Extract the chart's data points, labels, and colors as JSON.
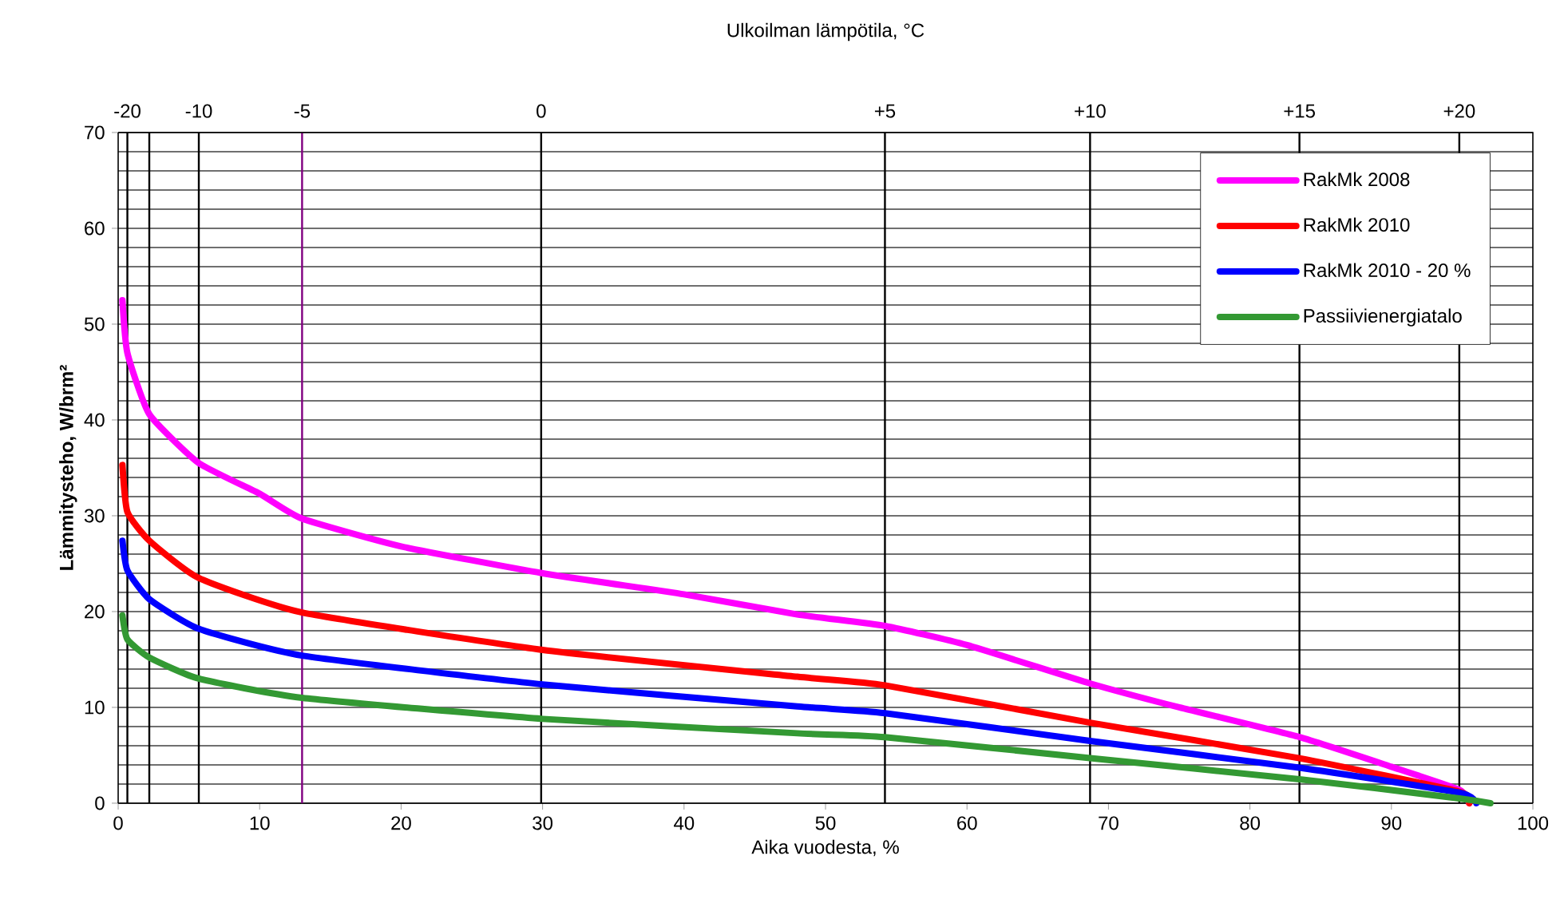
{
  "chart_data": {
    "type": "line",
    "xlabel": "Aika vuodesta, %",
    "ylabel": "Lämmitysteho, W/brm²",
    "annotations": [
      "Ulkoilman lämpötila, °C",
      {
        "text": "-20",
        "x": 0.65,
        "y": 70
      },
      {
        "text": "-10",
        "x": 5.7,
        "y": 70
      },
      {
        "text": "-5",
        "x": 13,
        "y": 70
      },
      {
        "text": "0",
        "x": 29.9,
        "y": 70
      },
      {
        "text": "+5",
        "x": 54.2,
        "y": 70
      },
      {
        "text": "+10",
        "x": 68.7,
        "y": 70
      },
      {
        "text": "+15",
        "x": 83.5,
        "y": 70
      },
      {
        "text": "+20",
        "x": 94.8,
        "y": 70
      }
    ],
    "xlim": [
      0,
      100
    ],
    "ylim": [
      0,
      70
    ],
    "xticks": [
      0,
      10,
      20,
      30,
      40,
      50,
      60,
      70,
      80,
      90,
      100
    ],
    "yticks": [
      0,
      {
        "value": 2,
        "label": null
      },
      {
        "value": 4,
        "label": null
      },
      {
        "value": 6,
        "label": null
      },
      {
        "value": 8,
        "label": null
      },
      10,
      {
        "value": 12,
        "label": null
      },
      {
        "value": 14,
        "label": null
      },
      {
        "value": 16,
        "label": null
      },
      {
        "value": 18,
        "label": null
      },
      20,
      {
        "value": 22,
        "label": null
      },
      {
        "value": 24,
        "label": null
      },
      {
        "value": 26,
        "label": null
      },
      {
        "value": 28,
        "label": null
      },
      30,
      {
        "value": 32,
        "label": null
      },
      {
        "value": 34,
        "label": null
      },
      {
        "value": 36,
        "label": null
      },
      {
        "value": 38,
        "label": null
      },
      40,
      {
        "value": 42,
        "label": null
      },
      {
        "value": 44,
        "label": null
      },
      {
        "value": 46,
        "label": null
      },
      {
        "value": 48,
        "label": null
      },
      50,
      {
        "value": 52,
        "label": null
      },
      {
        "value": 54,
        "label": null
      },
      {
        "value": 56,
        "label": null
      },
      {
        "value": 58,
        "label": null
      },
      60,
      {
        "value": 62,
        "label": null
      },
      {
        "value": 64,
        "label": null
      },
      {
        "value": 66,
        "label": null
      },
      {
        "value": 68,
        "label": null
      },
      70
    ],
    "grid": "y",
    "legend": "top right",
    "line_style": "solid",
    "marker": "none",
    "ref_lines": [
      {
        "axis": "x",
        "value": 0.65,
        "color": "#000000"
      },
      {
        "axis": "x",
        "value": 2.2,
        "color": "#000000"
      },
      {
        "axis": "x",
        "value": 5.7,
        "color": "#000000"
      },
      {
        "axis": "x",
        "value": 13,
        "color": "#800080"
      },
      {
        "axis": "x",
        "value": 29.9,
        "color": "#000000"
      },
      {
        "axis": "x",
        "value": 54.2,
        "color": "#000000"
      },
      {
        "axis": "x",
        "value": 68.7,
        "color": "#000000"
      },
      {
        "axis": "x",
        "value": 83.5,
        "color": "#000000"
      },
      {
        "axis": "x",
        "value": 94.8,
        "color": "#000000"
      }
    ],
    "series": [
      {
        "name": "RakMk 2008",
        "color": "#ff00ff",
        "x": [
          0.3,
          0.65,
          2.2,
          5.7,
          10,
          13,
          20,
          30,
          40,
          48,
          54.2,
          60,
          68.7,
          75,
          83.5,
          90,
          94.8,
          95.5
        ],
        "values": [
          52.5,
          47,
          40.6,
          35.5,
          32.3,
          29.7,
          26.8,
          24.0,
          21.8,
          19.7,
          18.5,
          16.5,
          12.5,
          10.0,
          6.9,
          3.8,
          1.4,
          0
        ]
      },
      {
        "name": "RakMk 2010",
        "color": "#ff0000",
        "x": [
          0.3,
          0.65,
          2.2,
          5.7,
          13,
          30,
          48,
          54.2,
          68.7,
          83.5,
          94.8,
          95.5
        ],
        "values": [
          35.3,
          30.4,
          27.4,
          23.5,
          19.9,
          16.0,
          13.2,
          12.3,
          8.4,
          4.7,
          1.2,
          0
        ]
      },
      {
        "name": "RakMk 2010 - 20 %",
        "color": "#0000ff",
        "x": [
          0.3,
          0.65,
          2.2,
          5.7,
          13,
          30,
          48,
          54.2,
          68.7,
          83.5,
          94.8,
          96
        ],
        "values": [
          27.4,
          24.3,
          21.3,
          18.2,
          15.4,
          12.4,
          10.1,
          9.4,
          6.5,
          3.7,
          1.1,
          0
        ]
      },
      {
        "name": "Passiivienergiatalo",
        "color": "#339933",
        "x": [
          0.3,
          0.65,
          2.2,
          5.7,
          13,
          30,
          48,
          54.2,
          68.7,
          83.5,
          94.8,
          97
        ],
        "values": [
          19.6,
          17.1,
          15.2,
          13.0,
          11.0,
          8.8,
          7.3,
          6.9,
          4.7,
          2.5,
          0.5,
          0
        ]
      }
    ]
  }
}
